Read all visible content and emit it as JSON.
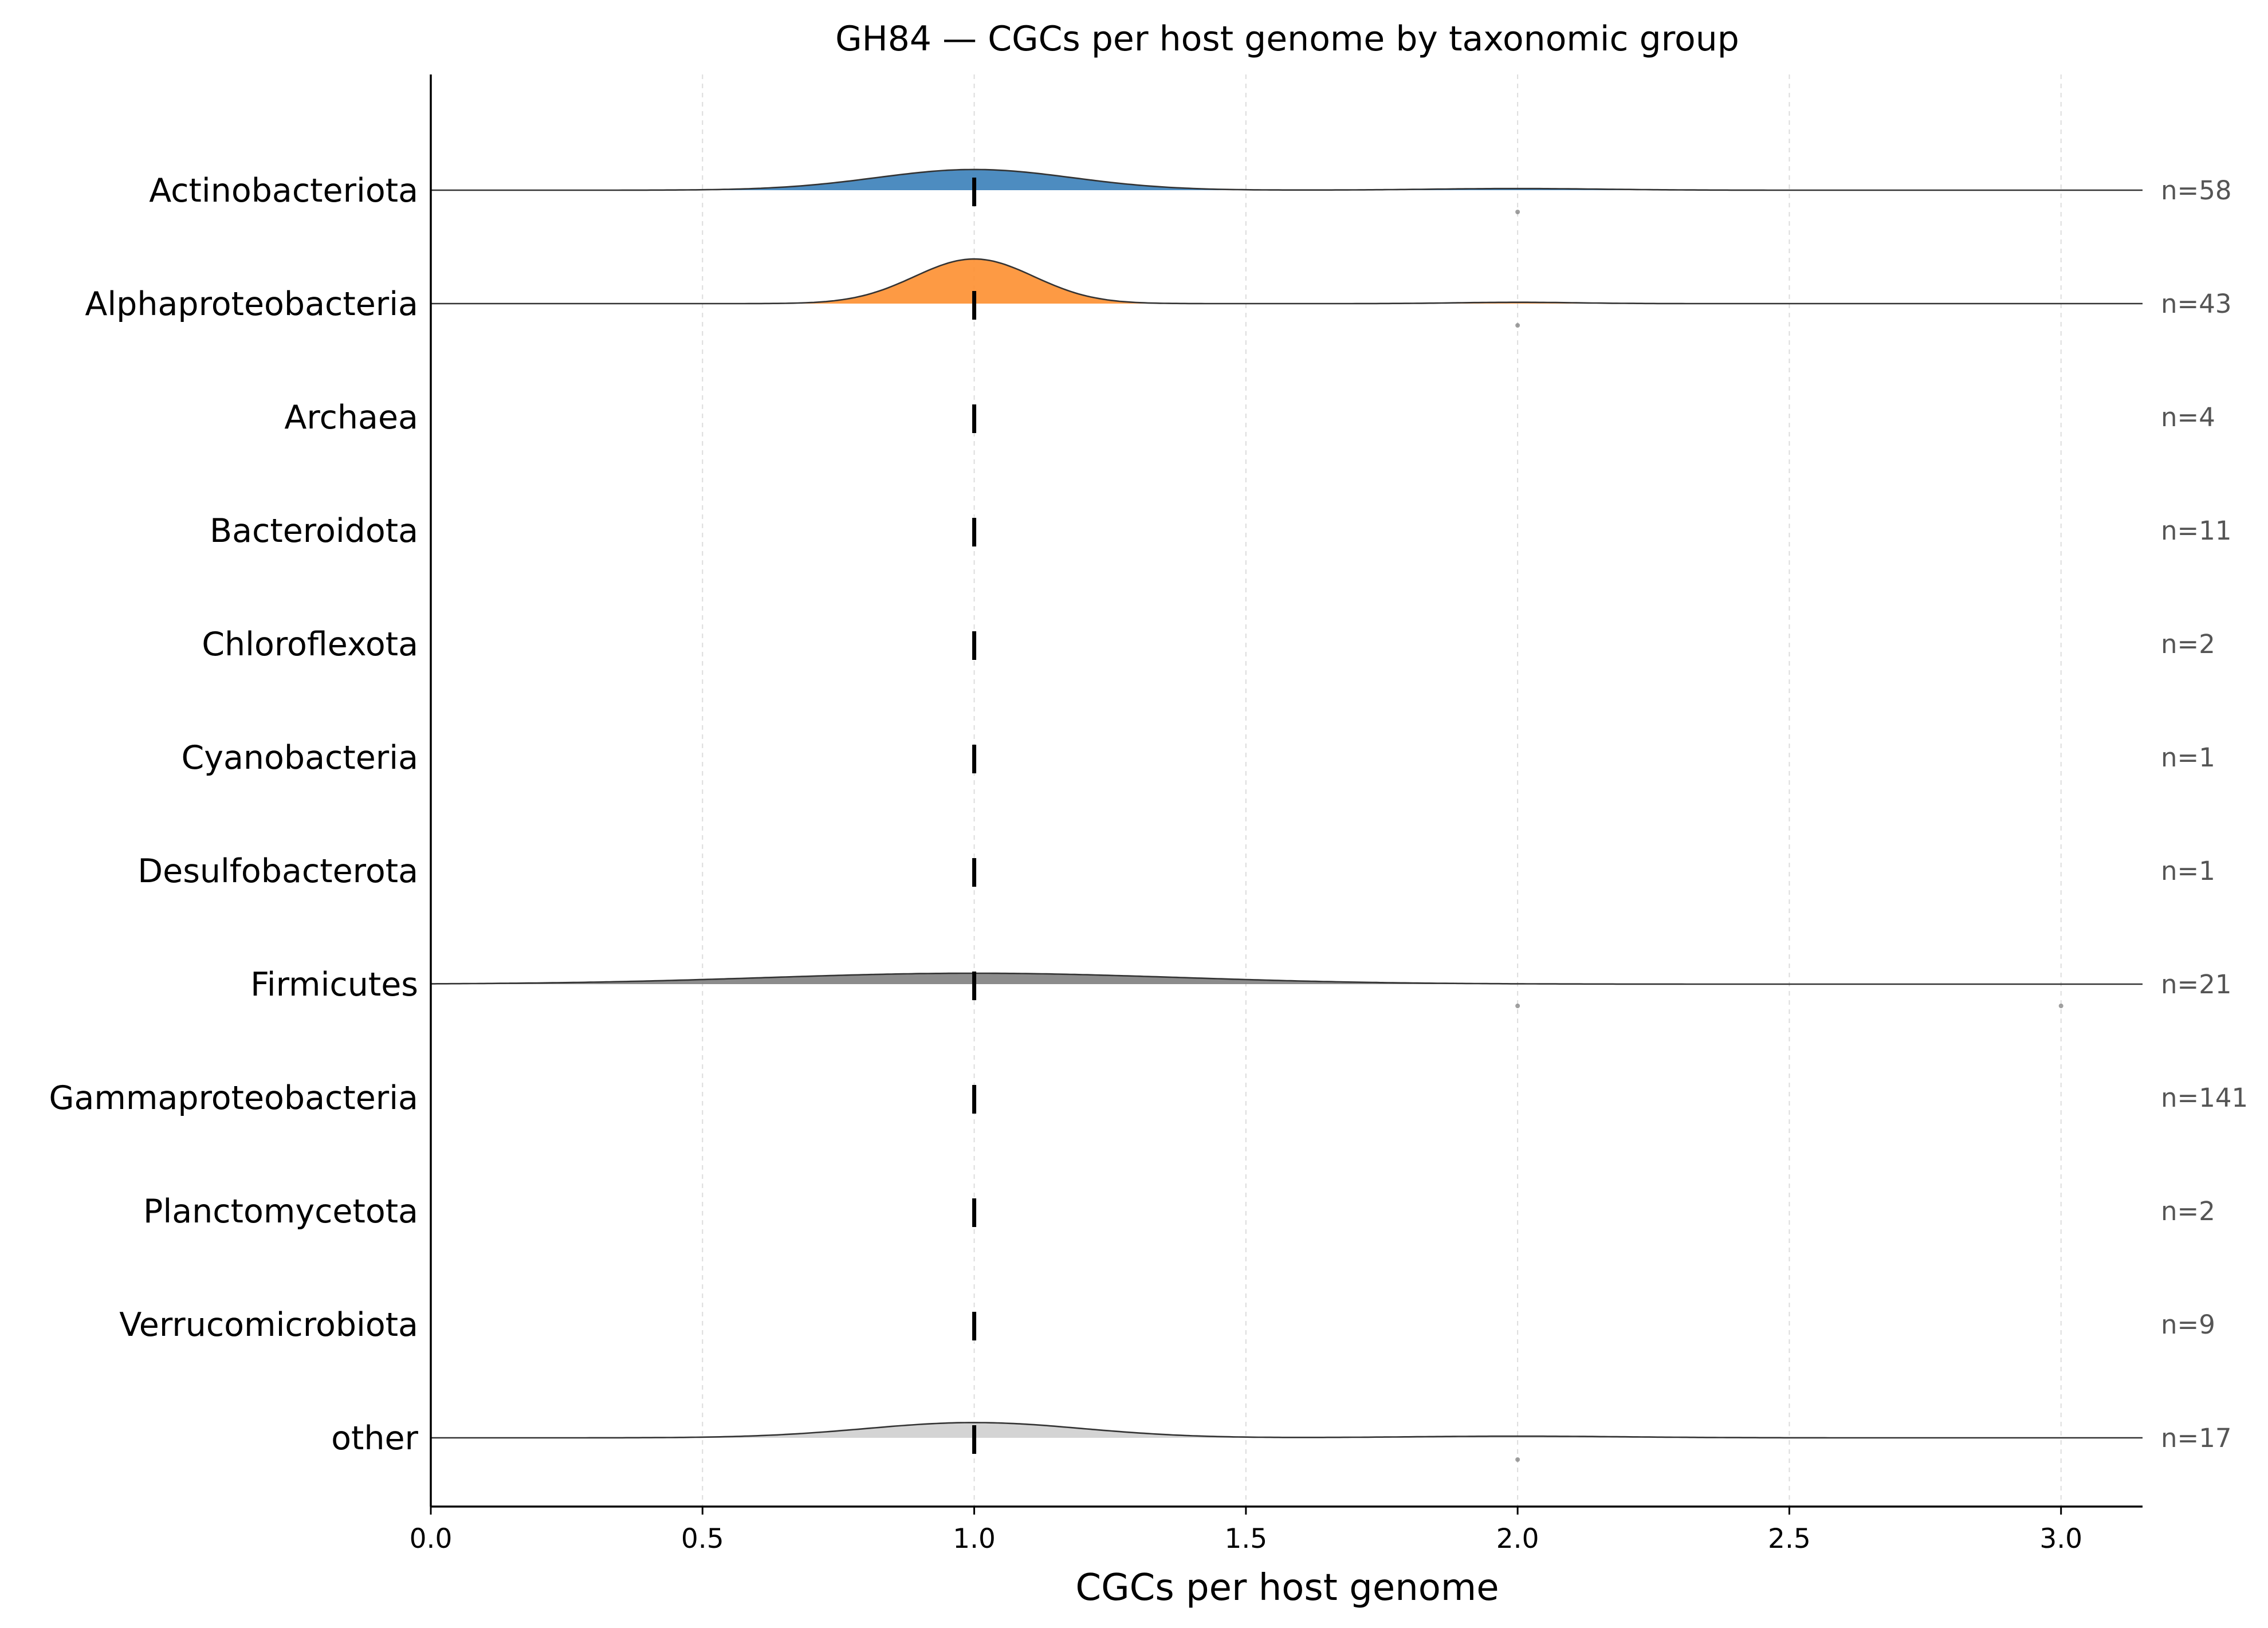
{
  "chart_data": {
    "type": "ridgeline",
    "title": "GH84 — CGCs per host genome by taxonomic group",
    "xlabel": "CGCs per host genome",
    "ylabel": "",
    "xlim": [
      0.0,
      3.15
    ],
    "xticks": [
      0.0,
      0.5,
      1.0,
      1.5,
      2.0,
      2.5,
      3.0
    ],
    "xtick_labels": [
      "0.0",
      "0.5",
      "1.0",
      "1.5",
      "2.0",
      "2.5",
      "3.0"
    ],
    "grid": "vertical dashed",
    "median_marker": "dashed vertical line per group",
    "groups": [
      {
        "name": "Actinobacteriota",
        "n_label": "n=58",
        "n": 58,
        "median": 1.0,
        "color": "#3a80b9",
        "peaks": [
          {
            "x": 1.0,
            "height": 0.19,
            "width": 0.18
          },
          {
            "x": 2.0,
            "height": 0.015,
            "width": 0.16
          }
        ],
        "outliers": [
          2.0
        ]
      },
      {
        "name": "Alphaproteobacteria",
        "n_label": "n=43",
        "n": 43,
        "median": 1.0,
        "color": "#fd8f30",
        "peaks": [
          {
            "x": 1.0,
            "height": 0.41,
            "width": 0.11
          },
          {
            "x": 2.0,
            "height": 0.012,
            "width": 0.11
          }
        ],
        "outliers": [
          2.0
        ]
      },
      {
        "name": "Archaea",
        "n_label": "n=4",
        "n": 4,
        "median": 1.0,
        "color": "#2ca02c",
        "peaks": [],
        "outliers": []
      },
      {
        "name": "Bacteroidota",
        "n_label": "n=11",
        "n": 11,
        "median": 1.0,
        "color": "#d62728",
        "peaks": [],
        "outliers": []
      },
      {
        "name": "Chloroflexota",
        "n_label": "n=2",
        "n": 2,
        "median": 1.0,
        "color": "#9467bd",
        "peaks": [],
        "outliers": []
      },
      {
        "name": "Cyanobacteria",
        "n_label": "n=1",
        "n": 1,
        "median": 1.0,
        "color": "#8c564b",
        "peaks": [],
        "outliers": []
      },
      {
        "name": "Desulfobacterota",
        "n_label": "n=1",
        "n": 1,
        "median": 1.0,
        "color": "#e377c2",
        "peaks": [],
        "outliers": []
      },
      {
        "name": "Firmicutes",
        "n_label": "n=21",
        "n": 21,
        "median": 1.0,
        "color": "#7f7f7f",
        "peaks": [
          {
            "x": 1.0,
            "height": 0.1,
            "width": 0.38
          }
        ],
        "outliers": [
          2.0,
          3.0
        ]
      },
      {
        "name": "Gammaproteobacteria",
        "n_label": "n=141",
        "n": 141,
        "median": 1.0,
        "color": "#bcbd22",
        "peaks": [],
        "outliers": []
      },
      {
        "name": "Planctomycetota",
        "n_label": "n=2",
        "n": 2,
        "median": 1.0,
        "color": "#17becf",
        "peaks": [],
        "outliers": []
      },
      {
        "name": "Verrucomicrobiota",
        "n_label": "n=9",
        "n": 9,
        "median": 1.0,
        "color": "#1f77b4",
        "peaks": [],
        "outliers": []
      },
      {
        "name": "other",
        "n_label": "n=17",
        "n": 17,
        "median": 1.0,
        "color": "#cfcfcf",
        "peaks": [
          {
            "x": 1.0,
            "height": 0.14,
            "width": 0.2
          },
          {
            "x": 2.0,
            "height": 0.015,
            "width": 0.2
          }
        ],
        "outliers": [
          2.0
        ]
      }
    ]
  }
}
